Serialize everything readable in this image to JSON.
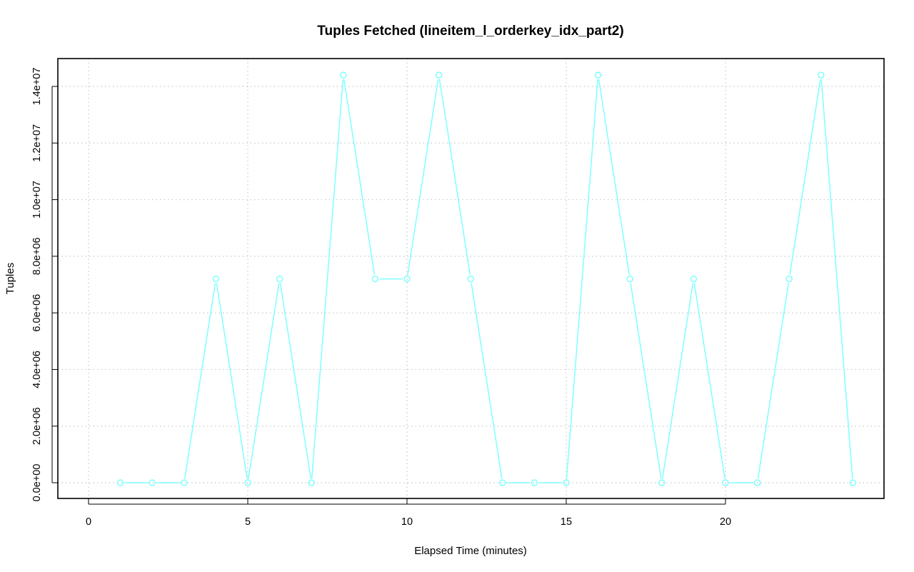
{
  "chart_data": {
    "type": "line",
    "title": "Tuples Fetched (lineitem_l_orderkey_idx_part2)",
    "xlabel": "Elapsed Time (minutes)",
    "ylabel": "Tuples",
    "xlim": [
      0,
      25
    ],
    "ylim": [
      -500000,
      15000000
    ],
    "x_ticks": [
      0,
      5,
      10,
      15,
      20
    ],
    "x_tick_labels": [
      "0",
      "5",
      "10",
      "15",
      "20"
    ],
    "y_ticks": [
      0,
      2000000,
      4000000,
      6000000,
      8000000,
      10000000,
      12000000,
      14000000
    ],
    "y_tick_labels": [
      "0.0e+00",
      "2.0e+06",
      "4.0e+06",
      "6.0e+06",
      "8.0e+06",
      "1.0e+07",
      "1.2e+07",
      "1.4e+07"
    ],
    "grid": true,
    "series": [
      {
        "color": "#7fffff",
        "x": [
          1,
          2,
          3,
          4,
          5,
          6,
          7,
          8,
          9,
          10,
          11,
          12,
          13,
          14,
          15,
          16,
          17,
          18,
          19,
          20,
          21,
          22,
          23,
          24
        ],
        "y": [
          0,
          0,
          0,
          7200000,
          0,
          7200000,
          0,
          14400000,
          7200000,
          7200000,
          14400000,
          7200000,
          0,
          0,
          0,
          14400000,
          7200000,
          0,
          7200000,
          0,
          0,
          7200000,
          14400000,
          0
        ]
      }
    ]
  }
}
